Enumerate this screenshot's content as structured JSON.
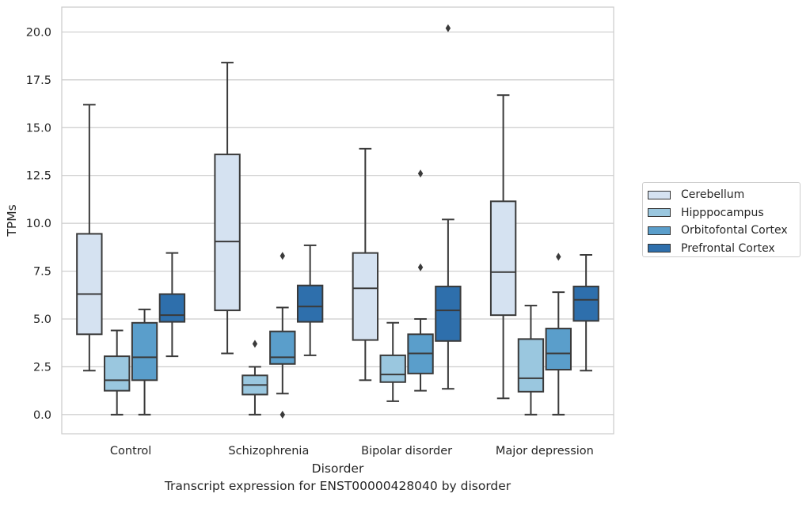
{
  "chart_data": {
    "type": "boxplot",
    "xlabel": "Disorder",
    "ylabel": "TPMs",
    "caption": "Transcript expression for ENST00000428040 by disorder",
    "ylim": [
      -1,
      21.3
    ],
    "yticks": [
      0.0,
      2.5,
      5.0,
      7.5,
      10.0,
      12.5,
      15.0,
      17.5,
      20.0
    ],
    "ytick_labels": [
      "0.0",
      "2.5",
      "5.0",
      "7.5",
      "10.0",
      "12.5",
      "15.0",
      "17.5",
      "20.0"
    ],
    "grid": true,
    "legend_position": "right",
    "categories": [
      "Control",
      "Schizophrenia",
      "Bipolar disorder",
      "Major depression"
    ],
    "series": [
      {
        "name": "Cerebellum",
        "color": "#d5e2f1",
        "boxes": [
          {
            "whislo": 2.3,
            "q1": 4.2,
            "med": 6.3,
            "q3": 9.45,
            "whishi": 16.2,
            "fliers": []
          },
          {
            "whislo": 3.2,
            "q1": 5.45,
            "med": 9.05,
            "q3": 13.6,
            "whishi": 18.4,
            "fliers": []
          },
          {
            "whislo": 1.8,
            "q1": 3.9,
            "med": 6.6,
            "q3": 8.45,
            "whishi": 13.9,
            "fliers": []
          },
          {
            "whislo": 0.85,
            "q1": 5.2,
            "med": 7.45,
            "q3": 11.15,
            "whishi": 16.7,
            "fliers": []
          }
        ]
      },
      {
        "name": "Hipppocampus",
        "color": "#9ac7df",
        "boxes": [
          {
            "whislo": 0.0,
            "q1": 1.25,
            "med": 1.8,
            "q3": 3.05,
            "whishi": 4.4,
            "fliers": []
          },
          {
            "whislo": 0.0,
            "q1": 1.05,
            "med": 1.55,
            "q3": 2.05,
            "whishi": 2.5,
            "fliers": [
              3.7
            ]
          },
          {
            "whislo": 0.7,
            "q1": 1.7,
            "med": 2.1,
            "q3": 3.1,
            "whishi": 4.8,
            "fliers": []
          },
          {
            "whislo": 0.0,
            "q1": 1.2,
            "med": 1.9,
            "q3": 3.95,
            "whishi": 5.7,
            "fliers": []
          }
        ]
      },
      {
        "name": "Orbitofontal Cortex",
        "color": "#5a9ecb",
        "boxes": [
          {
            "whislo": 0.0,
            "q1": 1.8,
            "med": 3.0,
            "q3": 4.8,
            "whishi": 5.5,
            "fliers": []
          },
          {
            "whislo": 1.1,
            "q1": 2.65,
            "med": 3.0,
            "q3": 4.35,
            "whishi": 5.6,
            "fliers": [
              8.3,
              0.0
            ]
          },
          {
            "whislo": 1.25,
            "q1": 2.15,
            "med": 3.2,
            "q3": 4.2,
            "whishi": 5.0,
            "fliers": [
              12.6,
              7.7
            ]
          },
          {
            "whislo": 0.0,
            "q1": 2.35,
            "med": 3.2,
            "q3": 4.5,
            "whishi": 6.4,
            "fliers": [
              8.25
            ]
          }
        ]
      },
      {
        "name": "Prefrontal Cortex",
        "color": "#2e6fac",
        "boxes": [
          {
            "whislo": 3.05,
            "q1": 4.85,
            "med": 5.2,
            "q3": 6.3,
            "whishi": 8.45,
            "fliers": []
          },
          {
            "whislo": 3.1,
            "q1": 4.85,
            "med": 5.65,
            "q3": 6.75,
            "whishi": 8.85,
            "fliers": []
          },
          {
            "whislo": 1.35,
            "q1": 3.85,
            "med": 5.45,
            "q3": 6.7,
            "whishi": 10.2,
            "fliers": [
              20.2
            ]
          },
          {
            "whislo": 2.3,
            "q1": 4.9,
            "med": 6.0,
            "q3": 6.7,
            "whishi": 8.35,
            "fliers": []
          }
        ]
      }
    ]
  }
}
